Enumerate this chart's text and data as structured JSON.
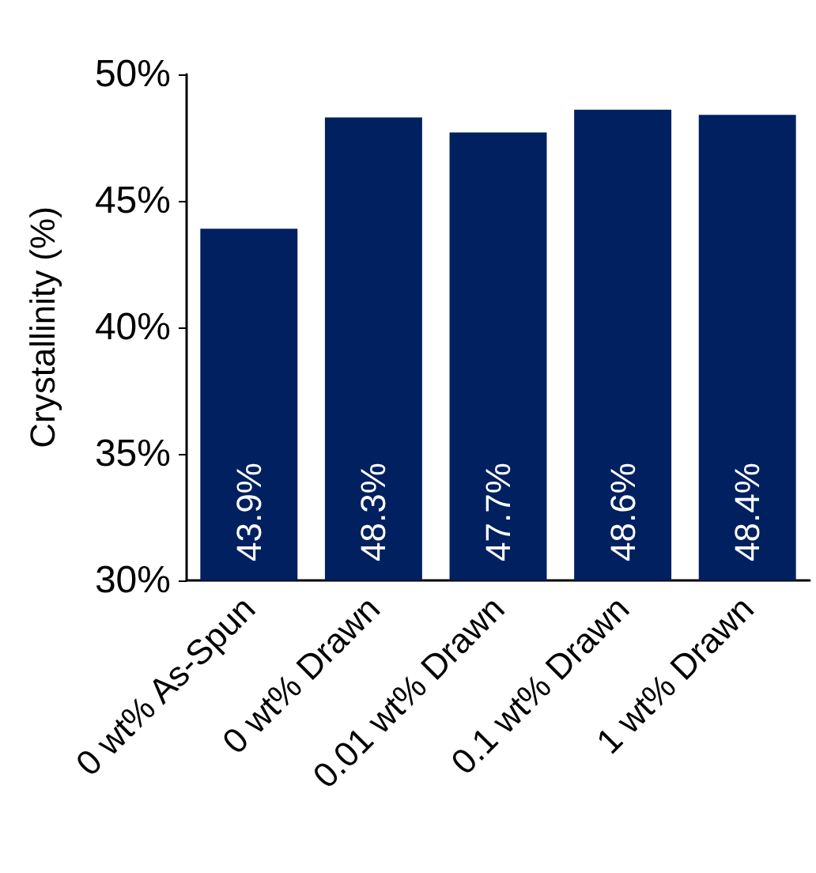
{
  "chart_data": {
    "type": "bar",
    "ylabel": "Crystallinity (%)",
    "categories": [
      "0 wt% As-Spun",
      "0 wt% Drawn",
      "0.01 wt% Drawn",
      "0.1 wt% Drawn",
      "1 wt% Drawn"
    ],
    "values": [
      43.9,
      48.3,
      47.7,
      48.6,
      48.4
    ],
    "color": "#002060",
    "value_labels": [
      "43.9%",
      "48.3%",
      "47.7%",
      "48.6%",
      "48.4%"
    ],
    "ylim": [
      30,
      50
    ],
    "yticks": [
      {
        "value": 30,
        "label": "30%"
      },
      {
        "value": 35,
        "label": "35%"
      },
      {
        "value": 40,
        "label": "40%"
      },
      {
        "value": 45,
        "label": "45%"
      },
      {
        "value": 50,
        "label": "50%"
      }
    ],
    "grid": false
  }
}
